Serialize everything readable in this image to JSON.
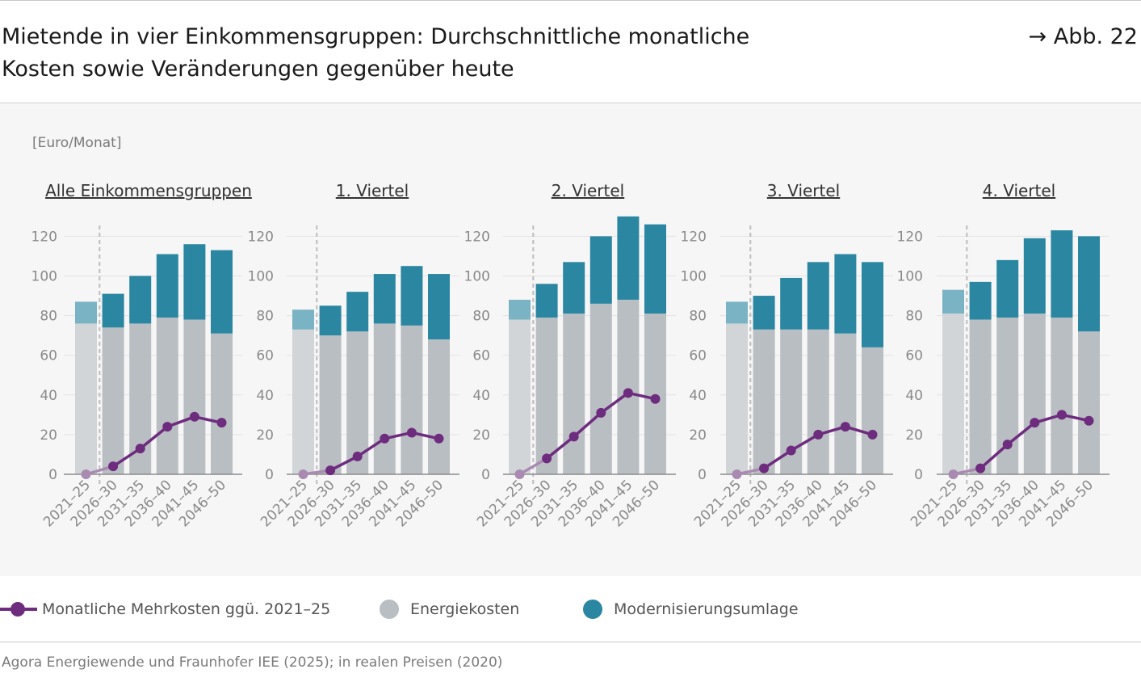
{
  "header": {
    "title_line1": "Mietende in vier Einkommensgruppen: Durchschnittliche monatliche",
    "title_line2": "Kosten sowie Veränderungen gegenüber heute",
    "figure_ref": "→ Abb. 22"
  },
  "unit_label": "[Euro/Monat]",
  "legend": {
    "line_label": "Monatliche Mehrkosten ggü. 2021–25",
    "energy_label": "Energiekosten",
    "modern_label": "Modernisierungsumlage"
  },
  "source": "Agora Energiewende und Fraunhofer IEE (2025); in realen Preisen (2020)",
  "colors": {
    "energy": "#b9bec2",
    "energy_base": "#d1d5d8",
    "modern": "#2b86a2",
    "modern_base": "#7ab3c4",
    "line": "#6e2c7f",
    "line_base": "#a98bb2"
  },
  "chart_data": [
    {
      "type": "bar",
      "title": "Alle Einkommensgruppen",
      "categories": [
        "2021–25",
        "2026–30",
        "2031–35",
        "2036–40",
        "2041–45",
        "2046–50"
      ],
      "yticks": [
        0,
        20,
        40,
        60,
        80,
        100,
        120
      ],
      "ylim": [
        0,
        130
      ],
      "stacked": true,
      "series": [
        {
          "name": "Energiekosten",
          "values": [
            76,
            74,
            76,
            79,
            78,
            71
          ]
        },
        {
          "name": "Modernisierungsumlage",
          "values": [
            11,
            17,
            24,
            32,
            38,
            42
          ]
        },
        {
          "name": "Monatliche Mehrkosten ggü. 2021–25",
          "type": "line",
          "values": [
            0,
            4,
            13,
            24,
            29,
            26
          ]
        }
      ]
    },
    {
      "type": "bar",
      "title": "1. Viertel",
      "categories": [
        "2021–25",
        "2026–30",
        "2031–35",
        "2036–40",
        "2041–45",
        "2046–50"
      ],
      "yticks": [
        0,
        20,
        40,
        60,
        80,
        100,
        120
      ],
      "ylim": [
        0,
        130
      ],
      "stacked": true,
      "series": [
        {
          "name": "Energiekosten",
          "values": [
            73,
            70,
            72,
            76,
            75,
            68
          ]
        },
        {
          "name": "Modernisierungsumlage",
          "values": [
            10,
            15,
            20,
            25,
            30,
            33
          ]
        },
        {
          "name": "Monatliche Mehrkosten ggü. 2021–25",
          "type": "line",
          "values": [
            0,
            2,
            9,
            18,
            21,
            18
          ]
        }
      ]
    },
    {
      "type": "bar",
      "title": "2. Viertel",
      "categories": [
        "2021–25",
        "2026–30",
        "2031–35",
        "2036–40",
        "2041–45",
        "2046–50"
      ],
      "yticks": [
        0,
        20,
        40,
        60,
        80,
        100,
        120
      ],
      "ylim": [
        0,
        130
      ],
      "stacked": true,
      "series": [
        {
          "name": "Energiekosten",
          "values": [
            78,
            79,
            81,
            86,
            88,
            81
          ]
        },
        {
          "name": "Modernisierungsumlage",
          "values": [
            10,
            17,
            26,
            34,
            42,
            45
          ]
        },
        {
          "name": "Monatliche Mehrkosten ggü. 2021–25",
          "type": "line",
          "values": [
            0,
            8,
            19,
            31,
            41,
            38
          ]
        }
      ]
    },
    {
      "type": "bar",
      "title": "3. Viertel",
      "categories": [
        "2021–25",
        "2026–30",
        "2031–35",
        "2036–40",
        "2041–45",
        "2046–50"
      ],
      "yticks": [
        0,
        20,
        40,
        60,
        80,
        100,
        120
      ],
      "ylim": [
        0,
        130
      ],
      "stacked": true,
      "series": [
        {
          "name": "Energiekosten",
          "values": [
            76,
            73,
            73,
            73,
            71,
            64
          ]
        },
        {
          "name": "Modernisierungsumlage",
          "values": [
            11,
            17,
            26,
            34,
            40,
            43
          ]
        },
        {
          "name": "Monatliche Mehrkosten ggü. 2021–25",
          "type": "line",
          "values": [
            0,
            3,
            12,
            20,
            24,
            20
          ]
        }
      ]
    },
    {
      "type": "bar",
      "title": "4. Viertel",
      "categories": [
        "2021–25",
        "2026–30",
        "2031–35",
        "2036–40",
        "2041–45",
        "2046–50"
      ],
      "yticks": [
        0,
        20,
        40,
        60,
        80,
        100,
        120
      ],
      "ylim": [
        0,
        130
      ],
      "stacked": true,
      "series": [
        {
          "name": "Energiekosten",
          "values": [
            81,
            78,
            79,
            81,
            79,
            72
          ]
        },
        {
          "name": "Modernisierungsumlage",
          "values": [
            12,
            19,
            29,
            38,
            44,
            48
          ]
        },
        {
          "name": "Monatliche Mehrkosten ggü. 2021–25",
          "type": "line",
          "values": [
            0,
            3,
            15,
            26,
            30,
            27
          ]
        }
      ]
    }
  ]
}
